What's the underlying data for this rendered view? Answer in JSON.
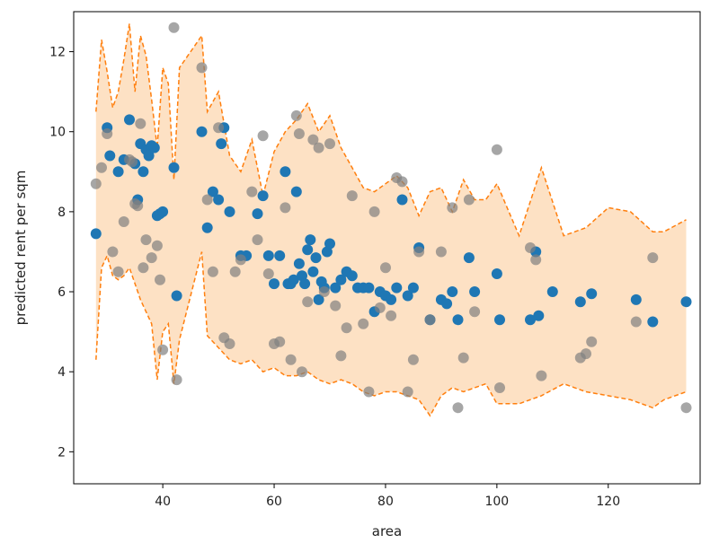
{
  "chart_data": {
    "type": "scatter",
    "title": "",
    "xlabel": "area",
    "ylabel": "predicted rent per sqm",
    "xlim": [
      24,
      136.5
    ],
    "ylim": [
      1.2,
      13.0
    ],
    "xticks": [
      40,
      60,
      80,
      100,
      120
    ],
    "yticks": [
      2,
      4,
      6,
      8,
      10,
      12
    ],
    "grid": false,
    "legend": "none",
    "colors": {
      "band_fill": "#fdd9b5",
      "band_edge": "#ff7f0e",
      "predicted": "#1f77b4",
      "observed": "#808080"
    },
    "band": {
      "x": [
        28,
        29,
        30,
        31,
        32,
        33,
        34,
        35,
        36,
        37,
        38,
        39,
        40,
        41,
        42,
        43,
        47,
        48,
        50,
        52,
        54,
        56,
        58,
        60,
        62,
        64,
        66,
        68,
        70,
        72,
        74,
        76,
        78,
        80,
        82,
        84,
        86,
        88,
        90,
        92,
        94,
        96,
        98,
        100,
        104,
        108,
        112,
        116,
        120,
        124,
        128,
        130,
        134
      ],
      "upper": [
        10.5,
        12.3,
        11.5,
        10.6,
        11.0,
        11.8,
        12.7,
        11.0,
        12.4,
        11.9,
        10.8,
        9.6,
        11.6,
        11.2,
        8.8,
        11.6,
        12.4,
        10.5,
        11.0,
        9.4,
        9.0,
        9.8,
        8.4,
        9.5,
        10.0,
        10.3,
        10.7,
        10.0,
        10.4,
        9.6,
        9.1,
        8.6,
        8.5,
        8.7,
        8.9,
        8.6,
        7.9,
        8.5,
        8.6,
        8.0,
        8.8,
        8.3,
        8.3,
        8.7,
        7.4,
        9.1,
        7.4,
        7.6,
        8.1,
        8.0,
        7.5,
        7.5,
        7.8
      ],
      "lower": [
        4.3,
        6.6,
        6.9,
        6.4,
        6.3,
        6.4,
        6.6,
        6.2,
        5.8,
        5.5,
        5.2,
        3.8,
        5.0,
        5.2,
        3.7,
        4.8,
        7.0,
        4.9,
        4.6,
        4.3,
        4.2,
        4.3,
        4.0,
        4.1,
        3.9,
        3.9,
        4.0,
        3.8,
        3.7,
        3.8,
        3.7,
        3.5,
        3.4,
        3.5,
        3.5,
        3.4,
        3.3,
        2.9,
        3.4,
        3.6,
        3.5,
        3.6,
        3.7,
        3.2,
        3.2,
        3.4,
        3.7,
        3.5,
        3.4,
        3.3,
        3.1,
        3.3,
        3.5
      ]
    },
    "series": [
      {
        "x": [
          28,
          30,
          30.5,
          32,
          33,
          34,
          35,
          35.5,
          36,
          36.5,
          37,
          37.5,
          38,
          38.5,
          39,
          39.5,
          40,
          42,
          42.5,
          47,
          48,
          49,
          50,
          50.5,
          51,
          52,
          54,
          55,
          57,
          58,
          59,
          60,
          61,
          62,
          62.5,
          63,
          63.5,
          64,
          64.5,
          65,
          65.5,
          66,
          66.5,
          67,
          67.5,
          68,
          68.5,
          69,
          69.5,
          70,
          71,
          72,
          73,
          74,
          75,
          76,
          77,
          78,
          79,
          80,
          81,
          82,
          83,
          84,
          85,
          86,
          88,
          90,
          91,
          92,
          93,
          95,
          96,
          100,
          100.5,
          106,
          107,
          107.5,
          110,
          115,
          117,
          125,
          128,
          134
        ],
        "y": [
          7.45,
          10.1,
          9.4,
          9.0,
          9.3,
          10.3,
          9.2,
          8.3,
          9.7,
          9.0,
          9.55,
          9.4,
          9.65,
          9.6,
          7.9,
          7.95,
          8.0,
          9.1,
          5.9,
          10.0,
          7.6,
          8.5,
          8.3,
          9.7,
          10.1,
          8.0,
          6.9,
          6.9,
          7.95,
          8.4,
          6.9,
          6.2,
          6.9,
          9.0,
          6.2,
          6.2,
          6.3,
          8.5,
          6.7,
          6.4,
          6.2,
          7.05,
          7.3,
          6.5,
          6.85,
          5.8,
          6.25,
          6.1,
          7.0,
          7.2,
          6.1,
          6.3,
          6.5,
          6.4,
          6.1,
          6.1,
          6.1,
          5.5,
          6.0,
          5.9,
          5.8,
          6.1,
          8.3,
          5.9,
          6.1,
          7.1,
          5.3,
          5.8,
          5.7,
          6.0,
          5.3,
          6.85,
          6.0,
          6.45,
          5.3,
          5.3,
          7.0,
          5.4,
          6.0,
          5.75,
          5.95,
          5.8,
          5.25,
          5.75
        ]
      },
      {
        "x": [
          28,
          29,
          30,
          31,
          32,
          33,
          34,
          34.5,
          35,
          35.5,
          36,
          36.5,
          37,
          38,
          39,
          39.5,
          40,
          42,
          42.5,
          47,
          48,
          49,
          50,
          51,
          52,
          53,
          54,
          56,
          57,
          58,
          59,
          60,
          61,
          62,
          63,
          64,
          64.5,
          65,
          66,
          67,
          68,
          69,
          70,
          71,
          72,
          73,
          74,
          76,
          77,
          78,
          79,
          80,
          81,
          82,
          83,
          84,
          85,
          86,
          88,
          90,
          92,
          93,
          94,
          95,
          96,
          100,
          100.5,
          106,
          107,
          108,
          115,
          116,
          117,
          125,
          128,
          134
        ],
        "y": [
          8.7,
          9.1,
          9.95,
          7.0,
          6.5,
          7.75,
          9.3,
          9.25,
          8.2,
          8.15,
          10.2,
          6.6,
          7.3,
          6.85,
          7.15,
          6.3,
          4.55,
          12.6,
          3.8,
          11.6,
          8.3,
          6.5,
          10.1,
          4.85,
          4.7,
          6.5,
          6.8,
          8.5,
          7.3,
          9.9,
          6.45,
          4.7,
          4.75,
          8.1,
          4.3,
          10.4,
          9.95,
          4.0,
          5.75,
          9.8,
          9.6,
          6.0,
          9.7,
          5.65,
          4.4,
          5.1,
          8.4,
          5.2,
          3.5,
          8.0,
          5.6,
          6.6,
          5.4,
          8.85,
          8.75,
          3.5,
          4.3,
          7.0,
          5.3,
          7.0,
          8.1,
          3.1,
          4.35,
          8.3,
          5.5,
          9.55,
          3.6,
          7.1,
          6.8,
          3.9,
          4.35,
          4.45,
          4.75,
          5.25,
          6.85,
          3.1
        ]
      }
    ]
  }
}
